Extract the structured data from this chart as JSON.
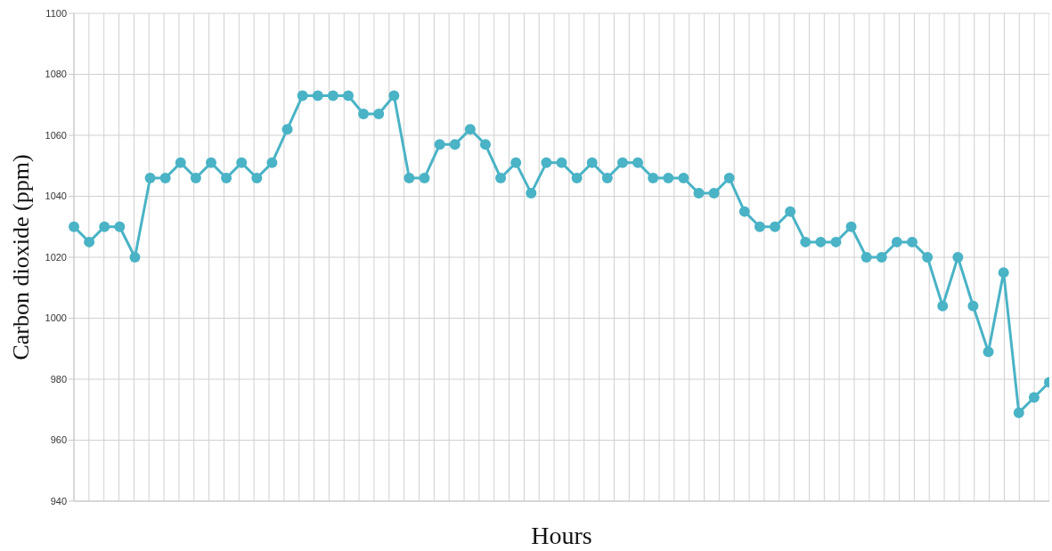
{
  "chart_data": {
    "type": "line",
    "xlabel": "Hours",
    "ylabel": "Carbon dioxide (ppm)",
    "categories": [
      null,
      null,
      null,
      null,
      null,
      null,
      null,
      null,
      null,
      null,
      null,
      null,
      null,
      null,
      null,
      null,
      null,
      null,
      null,
      null,
      null,
      null,
      null,
      null,
      null,
      null,
      null,
      null,
      null,
      null,
      null,
      null,
      null,
      null,
      null,
      null,
      null,
      null,
      null,
      null,
      null,
      null,
      null,
      null,
      null,
      null,
      null,
      null,
      null,
      null,
      null,
      null,
      null,
      null,
      null,
      null,
      null,
      null,
      null,
      null,
      null,
      null,
      null,
      null,
      null
    ],
    "series": [
      {
        "color": "#4ab3c6",
        "values": [
          1030,
          1025,
          1030,
          1030,
          1020,
          1046,
          1046,
          1051,
          1046,
          1051,
          1046,
          1051,
          1046,
          1051,
          1062,
          1073,
          1073,
          1073,
          1073,
          1067,
          1067,
          1073,
          1046,
          1046,
          1057,
          1057,
          1062,
          1057,
          1046,
          1051,
          1041,
          1051,
          1051,
          1046,
          1051,
          1046,
          1051,
          1051,
          1046,
          1046,
          1046,
          1041,
          1041,
          1046,
          1035,
          1030,
          1030,
          1035,
          1025,
          1025,
          1025,
          1030,
          1020,
          1020,
          1025,
          1025,
          1020,
          1004,
          1020,
          1004,
          989,
          1015,
          969,
          974,
          979
        ]
      }
    ],
    "ylim": [
      940,
      1100
    ],
    "yticks": [
      940,
      960,
      980,
      1000,
      1020,
      1040,
      1060,
      1080,
      1100
    ],
    "grid": true,
    "tick_labels": "y",
    "marker": "circle",
    "line_style": "solid"
  }
}
